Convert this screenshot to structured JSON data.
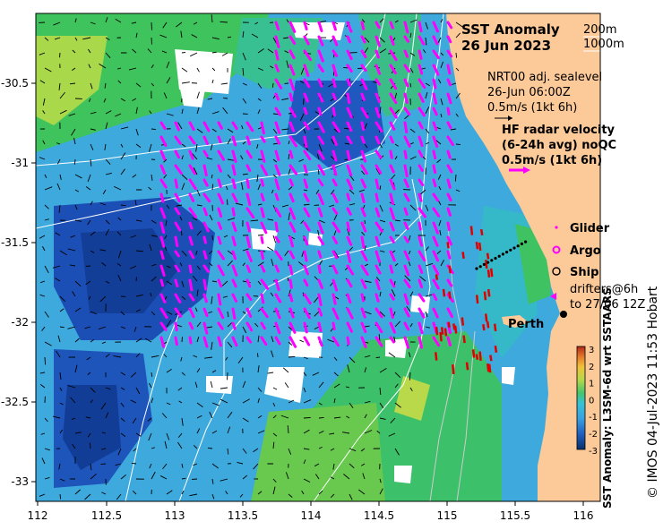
{
  "title": {
    "line1": "SST Anomaly",
    "line2": "26 Jun 2023"
  },
  "isobaths": {
    "first": "200m",
    "second": "1000m"
  },
  "sealevel": {
    "line1": "NRT00 adj. sealevel",
    "line2": "26-Jun 06:00Z",
    "line3": "0.5m/s (1kt 6h)"
  },
  "radar": {
    "line1": "HF radar velocity",
    "line2": "(6-24h avg) noQC",
    "line3": "0.5m/s (1kt 6h)"
  },
  "legend": {
    "glider": "Glider",
    "argo": "Argo",
    "ship": "Ship",
    "drifters1": "drifters@6h",
    "drifters2": "to 27/06 12Z"
  },
  "place": {
    "perth": "Perth"
  },
  "axes": {
    "x_ticks": [
      "112",
      "112.5",
      "113",
      "113.5",
      "114",
      "114.5",
      "115",
      "115.5",
      "116"
    ],
    "y_ticks": [
      "-30.5",
      "-31",
      "-31.5",
      "-32",
      "-32.5",
      "-33"
    ]
  },
  "colorbar": {
    "ticks": [
      "3",
      "2",
      "1",
      "0",
      "-1",
      "-2",
      "-3"
    ],
    "label": "SST Anomaly: L3SM-6d wrt SSTAARS",
    "colors": [
      "#08306b",
      "#1f5fbf",
      "#3aa0e0",
      "#36c2d4",
      "#46c66a",
      "#b7d84a",
      "#f0c23a",
      "#e37a2a",
      "#b32818"
    ]
  },
  "credit": "© IMOS 04-Jul-2023 11:53 Hobart",
  "colors": {
    "land": "#fcc999",
    "arrow_radar": "#ff00ff",
    "arrow_drifter": "#e00000",
    "isobath": "#ffffff"
  }
}
